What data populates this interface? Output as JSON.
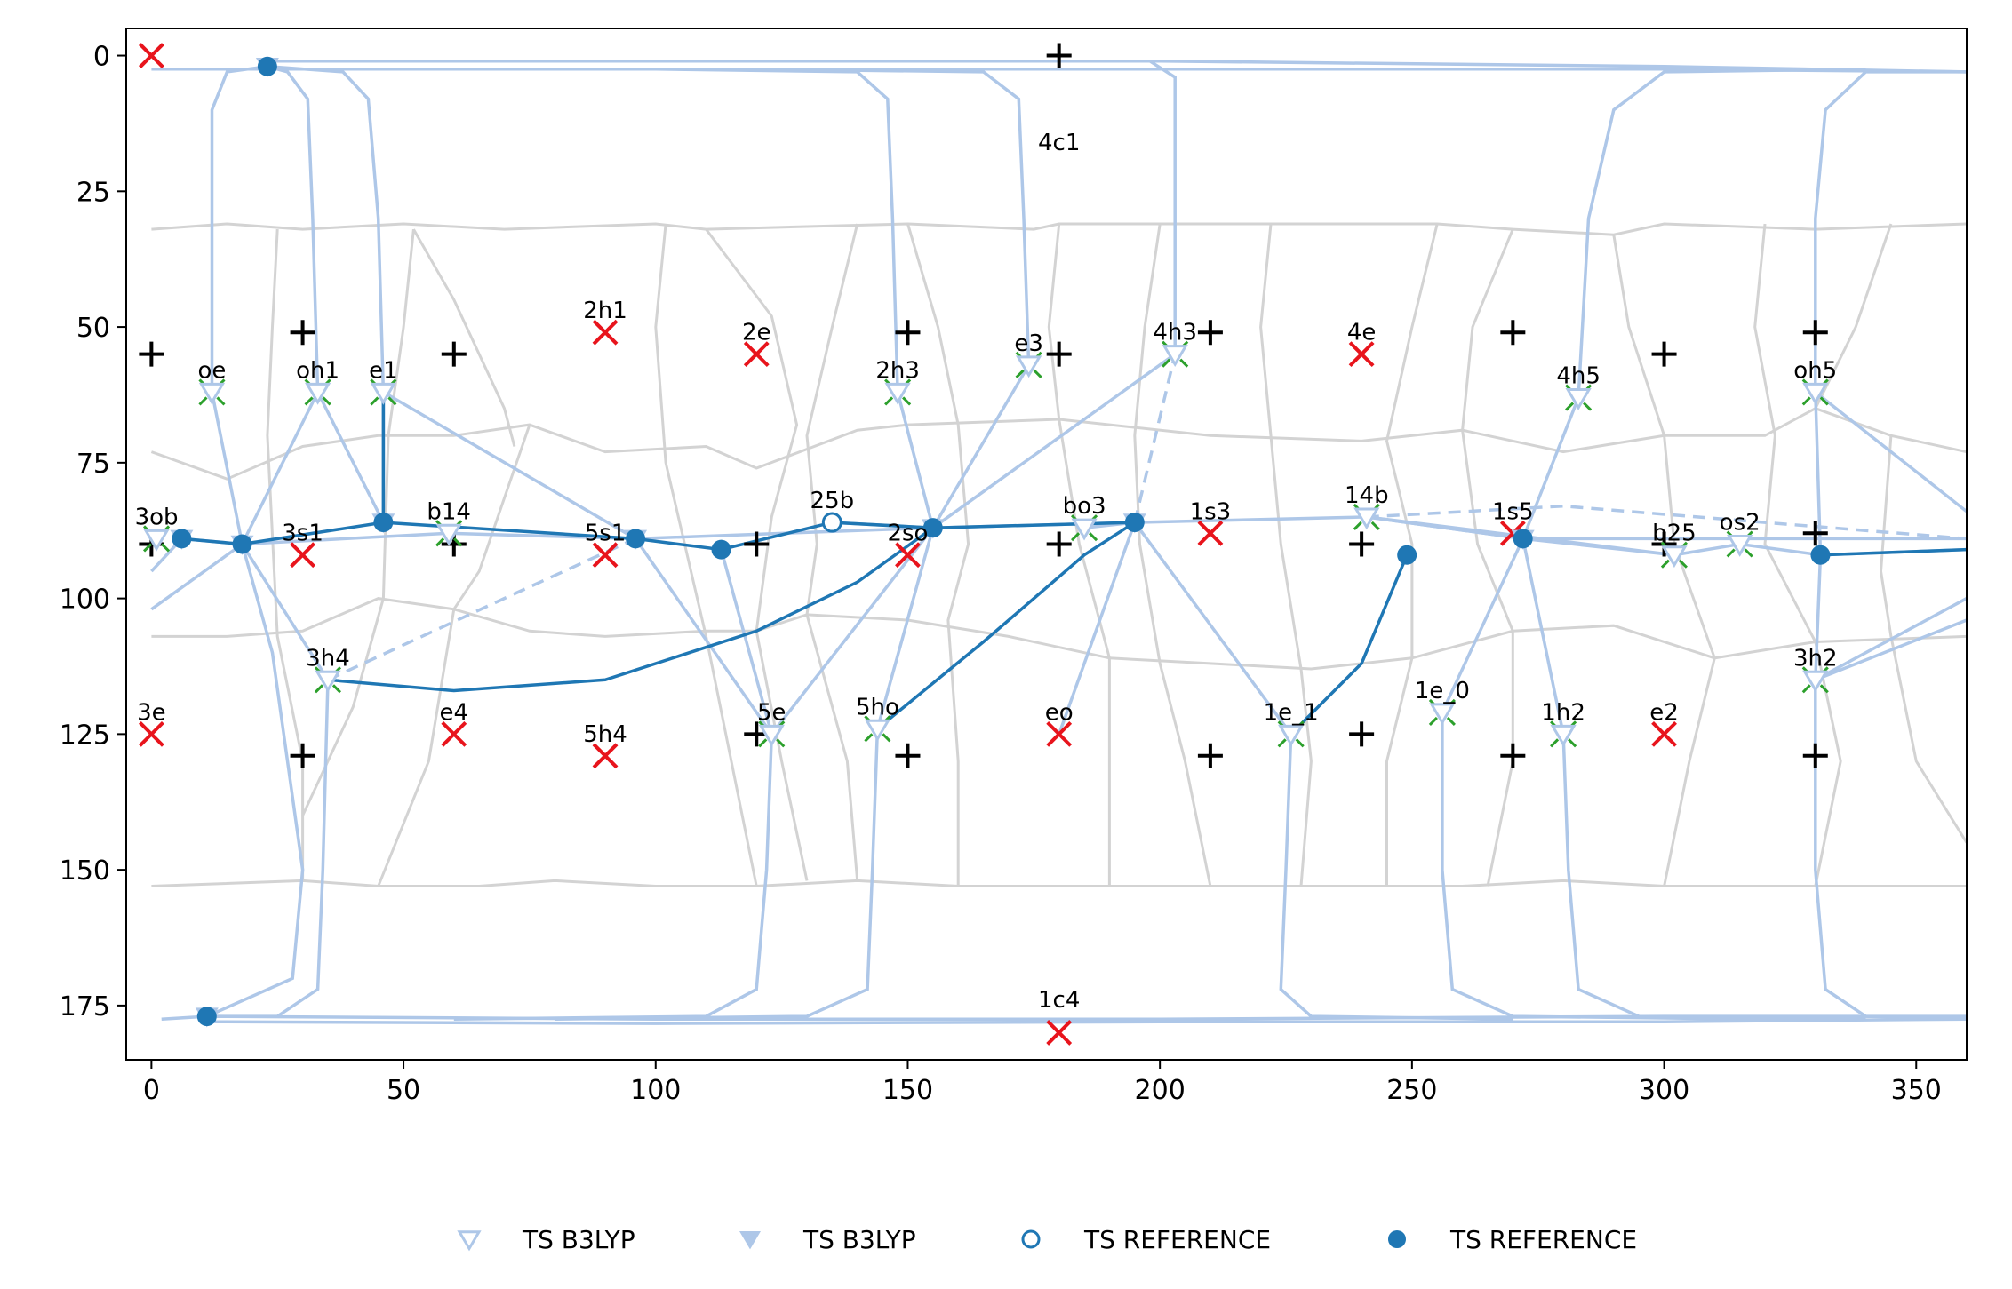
{
  "chart_data": {
    "type": "scatter",
    "xlim": [
      -5,
      360
    ],
    "ylim": [
      -5,
      185
    ],
    "y_inverted": true,
    "x_ticks": [
      0,
      50,
      100,
      150,
      200,
      250,
      300,
      350
    ],
    "y_ticks": [
      0,
      25,
      50,
      75,
      100,
      125,
      150,
      175
    ],
    "grid": false,
    "legend_position": "bottom-center",
    "colors": {
      "light_blue": "#aec7e8",
      "dark_blue": "#1f77b4",
      "grey": "#d3d3d3",
      "red": "#e8141c",
      "green": "#2ca02c",
      "black": "#000000"
    },
    "legend": [
      {
        "label": "TS B3LYP",
        "marker": "triangle-open"
      },
      {
        "label": "TS B3LYP",
        "marker": "triangle-filled"
      },
      {
        "label": "TS REFERENCE",
        "marker": "circle-open"
      },
      {
        "label": "TS REFERENCE",
        "marker": "circle-filled"
      }
    ],
    "labeled_points": [
      {
        "name": "oe",
        "x": 12,
        "y": 62
      },
      {
        "name": "oh1",
        "x": 33,
        "y": 62
      },
      {
        "name": "e1",
        "x": 46,
        "y": 62
      },
      {
        "name": "2h1",
        "x": 90,
        "y": 51
      },
      {
        "name": "2e",
        "x": 120,
        "y": 55
      },
      {
        "name": "2h3",
        "x": 148,
        "y": 62
      },
      {
        "name": "e3",
        "x": 174,
        "y": 57
      },
      {
        "name": "4h3",
        "x": 203,
        "y": 55
      },
      {
        "name": "4e",
        "x": 240,
        "y": 55
      },
      {
        "name": "4h5",
        "x": 283,
        "y": 63
      },
      {
        "name": "oh5",
        "x": 330,
        "y": 62
      },
      {
        "name": "4c1",
        "x": 180,
        "y": 20
      },
      {
        "name": "3ob",
        "x": 1,
        "y": 89
      },
      {
        "name": "3s1",
        "x": 30,
        "y": 92
      },
      {
        "name": "b14",
        "x": 59,
        "y": 88
      },
      {
        "name": "5s1",
        "x": 90,
        "y": 92
      },
      {
        "name": "25b",
        "x": 135,
        "y": 86
      },
      {
        "name": "2so",
        "x": 150,
        "y": 92
      },
      {
        "name": "bo3",
        "x": 185,
        "y": 87
      },
      {
        "name": "1s3",
        "x": 210,
        "y": 88
      },
      {
        "name": "14b",
        "x": 241,
        "y": 85
      },
      {
        "name": "1s5",
        "x": 270,
        "y": 88
      },
      {
        "name": "b25",
        "x": 302,
        "y": 92
      },
      {
        "name": "os2",
        "x": 315,
        "y": 90
      },
      {
        "name": "3h4",
        "x": 35,
        "y": 115
      },
      {
        "name": "3e",
        "x": 0,
        "y": 125
      },
      {
        "name": "e4",
        "x": 60,
        "y": 125
      },
      {
        "name": "5h4",
        "x": 90,
        "y": 129
      },
      {
        "name": "5e",
        "x": 123,
        "y": 125
      },
      {
        "name": "5ho",
        "x": 144,
        "y": 124
      },
      {
        "name": "eo",
        "x": 180,
        "y": 125
      },
      {
        "name": "1e_1",
        "x": 226,
        "y": 125
      },
      {
        "name": "1e_0",
        "x": 256,
        "y": 121
      },
      {
        "name": "1h2",
        "x": 280,
        "y": 125
      },
      {
        "name": "e2",
        "x": 300,
        "y": 125
      },
      {
        "name": "3h2",
        "x": 330,
        "y": 115
      },
      {
        "name": "1c4",
        "x": 180,
        "y": 178
      }
    ],
    "ts_b3lyp_open": [
      [
        12,
        62
      ],
      [
        33,
        62
      ],
      [
        46,
        62
      ],
      [
        148,
        62
      ],
      [
        174,
        57
      ],
      [
        203,
        55
      ],
      [
        283,
        63
      ],
      [
        330,
        62
      ],
      [
        1,
        89
      ],
      [
        59,
        88
      ],
      [
        185,
        87
      ],
      [
        241,
        85
      ],
      [
        302,
        92
      ],
      [
        315,
        90
      ],
      [
        35,
        115
      ],
      [
        123,
        125
      ],
      [
        144,
        124
      ],
      [
        226,
        125
      ],
      [
        256,
        121
      ],
      [
        280,
        125
      ],
      [
        330,
        115
      ]
    ],
    "ts_b3lyp_filled": [
      [
        6,
        89
      ],
      [
        18,
        90
      ],
      [
        46,
        86
      ],
      [
        96,
        89
      ],
      [
        155,
        87
      ],
      [
        195,
        86
      ],
      [
        272,
        89
      ],
      [
        11,
        177
      ],
      [
        23,
        2
      ]
    ],
    "ts_reference_open": [
      [
        135,
        86
      ]
    ],
    "ts_reference_filled": [
      [
        6,
        89
      ],
      [
        18,
        90
      ],
      [
        46,
        86
      ],
      [
        96,
        89
      ],
      [
        113,
        91
      ],
      [
        155,
        87
      ],
      [
        195,
        86
      ],
      [
        249,
        92
      ],
      [
        272,
        89
      ],
      [
        331,
        92
      ],
      [
        23,
        2
      ],
      [
        11,
        177
      ]
    ],
    "minima_red": [
      [
        0,
        0
      ],
      [
        30,
        92
      ],
      [
        90,
        92
      ],
      [
        150,
        92
      ],
      [
        210,
        88
      ],
      [
        270,
        88
      ],
      [
        90,
        51
      ],
      [
        120,
        55
      ],
      [
        240,
        55
      ],
      [
        0,
        125
      ],
      [
        60,
        125
      ],
      [
        90,
        129
      ],
      [
        180,
        125
      ],
      [
        300,
        125
      ],
      [
        180,
        180
      ]
    ],
    "plus_black": [
      [
        180,
        0
      ],
      [
        0,
        55
      ],
      [
        30,
        51
      ],
      [
        60,
        55
      ],
      [
        150,
        51
      ],
      [
        180,
        55
      ],
      [
        210,
        51
      ],
      [
        270,
        51
      ],
      [
        300,
        55
      ],
      [
        330,
        51
      ],
      [
        0,
        90
      ],
      [
        60,
        90
      ],
      [
        120,
        90
      ],
      [
        180,
        90
      ],
      [
        240,
        90
      ],
      [
        300,
        90
      ],
      [
        330,
        88
      ],
      [
        30,
        129
      ],
      [
        120,
        125
      ],
      [
        150,
        129
      ],
      [
        210,
        129
      ],
      [
        240,
        125
      ],
      [
        270,
        129
      ],
      [
        330,
        129
      ]
    ]
  }
}
